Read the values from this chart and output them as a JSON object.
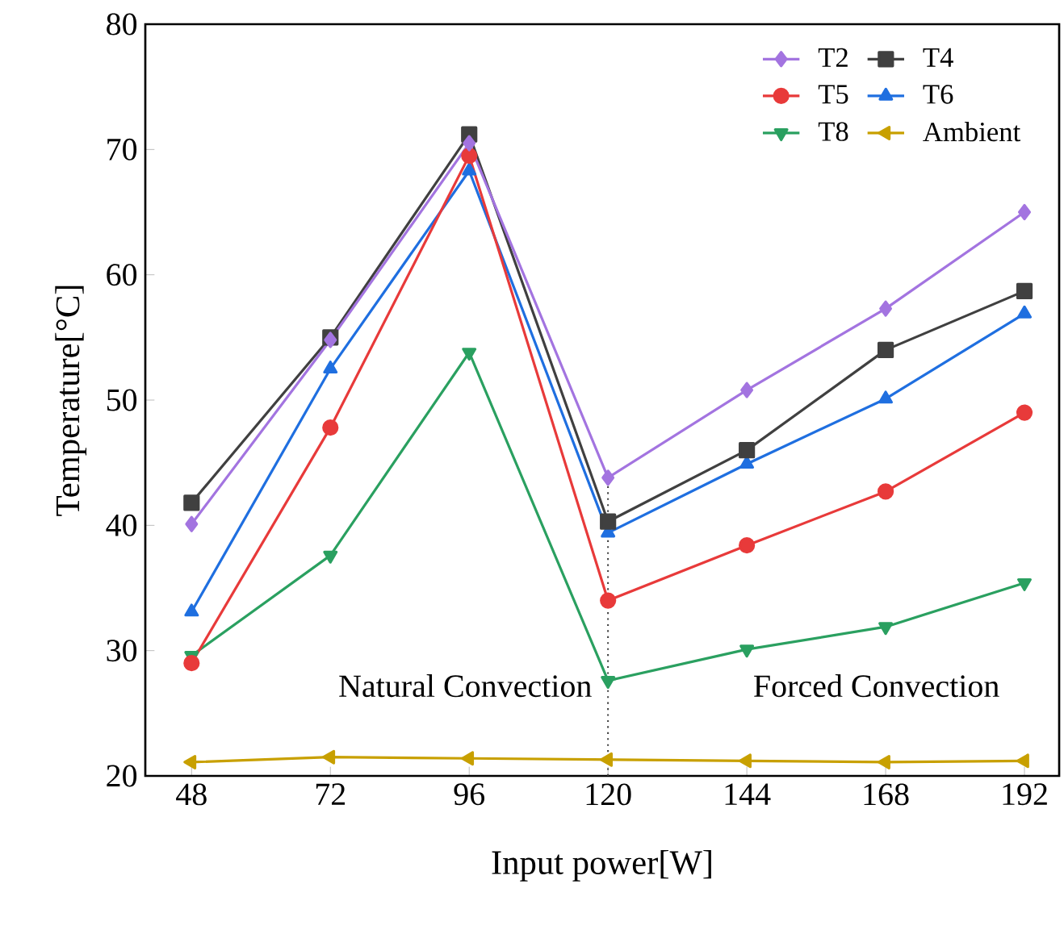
{
  "chart_data": {
    "type": "line",
    "xlabel": "Input power[W]",
    "ylabel": "Temperature[°C]",
    "x": [
      48,
      72,
      96,
      120,
      144,
      168,
      192
    ],
    "series": [
      {
        "name": "T2",
        "color": "#a374e0",
        "marker": "diamond",
        "values": [
          40.1,
          54.8,
          70.5,
          43.8,
          50.8,
          57.3,
          65.0
        ]
      },
      {
        "name": "T4",
        "color": "#404040",
        "marker": "square",
        "values": [
          41.8,
          55.0,
          71.2,
          40.3,
          46.0,
          54.0,
          58.7
        ]
      },
      {
        "name": "T5",
        "color": "#e83a3a",
        "marker": "circle",
        "values": [
          29.0,
          47.8,
          69.5,
          34.0,
          38.4,
          42.7,
          49.0
        ]
      },
      {
        "name": "T6",
        "color": "#1f6fe0",
        "marker": "triangle",
        "values": [
          33.1,
          52.5,
          68.3,
          39.4,
          44.9,
          50.1,
          56.9
        ]
      },
      {
        "name": "T8",
        "color": "#2aa060",
        "marker": "triangle-down",
        "values": [
          29.6,
          37.6,
          53.8,
          27.6,
          30.1,
          31.9,
          35.4
        ]
      },
      {
        "name": "Ambient",
        "color": "#c8a000",
        "marker": "triangle-left",
        "values": [
          21.1,
          21.5,
          21.4,
          21.3,
          21.2,
          21.1,
          21.2
        ]
      }
    ],
    "xlim": [
      40,
      198
    ],
    "ylim": [
      20,
      80
    ],
    "xticks": [
      48,
      72,
      96,
      120,
      144,
      168,
      192
    ],
    "yticks": [
      20,
      30,
      40,
      50,
      60,
      70,
      80
    ],
    "ref_lines": [
      {
        "axis": "x",
        "value": 120,
        "line_style": "dotted",
        "color": "#404040"
      }
    ],
    "annotations": [
      "Natural Convection",
      "Forced Convection"
    ],
    "legend": "top right",
    "grid": false
  }
}
